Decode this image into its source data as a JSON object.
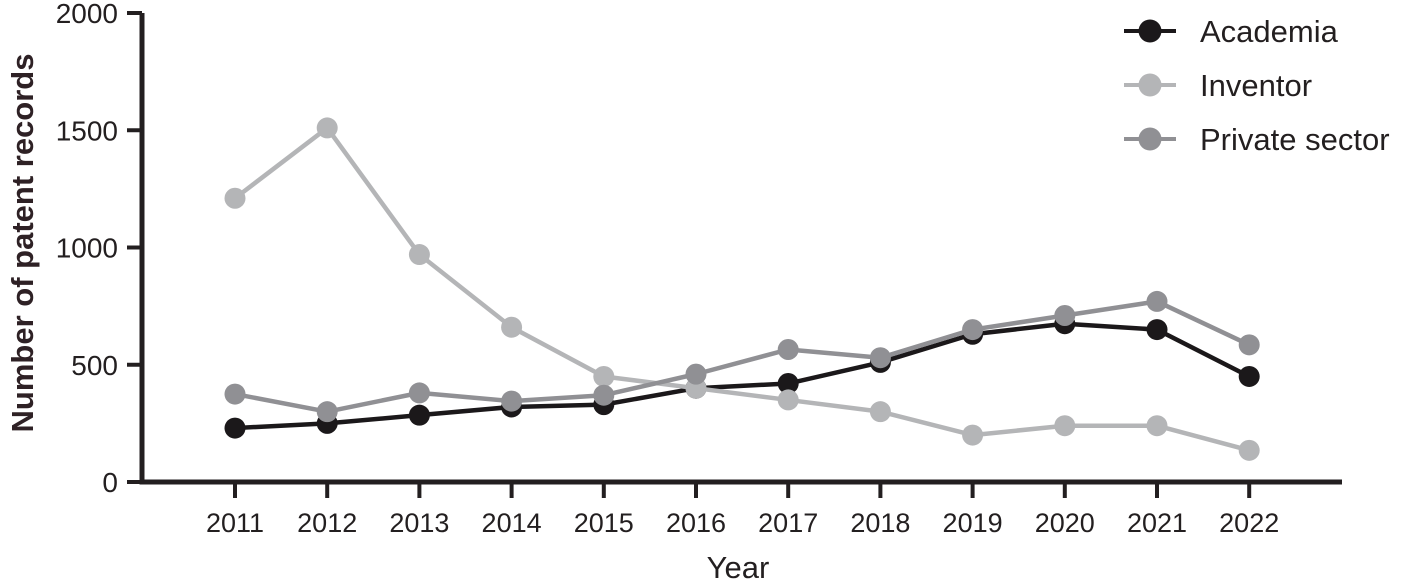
{
  "figure": {
    "background": "#ffffff",
    "axis_color": "#231f20",
    "tick_label_color": "#231f20",
    "ylabel_color": "#2e2125",
    "xlabel_color": "#231f20",
    "legend_text_color": "#231f20"
  },
  "chart_data": {
    "type": "line",
    "xlabel": "Year",
    "ylabel": "Number of patent records",
    "x": [
      2011,
      2012,
      2013,
      2014,
      2015,
      2016,
      2017,
      2018,
      2019,
      2020,
      2021,
      2022
    ],
    "xtick_labels": [
      "2011",
      "2012",
      "2013",
      "2014",
      "2015",
      "2016",
      "2017",
      "2018",
      "2019",
      "2020",
      "2021",
      "2022"
    ],
    "yticks": [
      0,
      500,
      1000,
      1500,
      2000
    ],
    "ytick_labels": [
      "0",
      "500",
      "1000",
      "1500",
      "2000"
    ],
    "ylim": [
      0,
      2000
    ],
    "grid": false,
    "legend_position": "top-right",
    "legend": [
      "Academia",
      "Inventor",
      "Private sector"
    ],
    "series": [
      {
        "name": "Academia",
        "color": "#1b181a",
        "values": [
          230,
          250,
          285,
          320,
          330,
          400,
          420,
          510,
          630,
          675,
          650,
          450
        ]
      },
      {
        "name": "Inventor",
        "color": "#b4b5b7",
        "values": [
          1210,
          1510,
          970,
          660,
          450,
          400,
          350,
          300,
          200,
          240,
          240,
          135
        ]
      },
      {
        "name": "Private sector",
        "color": "#909094",
        "values": [
          375,
          300,
          380,
          345,
          370,
          460,
          565,
          530,
          650,
          710,
          770,
          585
        ]
      }
    ]
  }
}
